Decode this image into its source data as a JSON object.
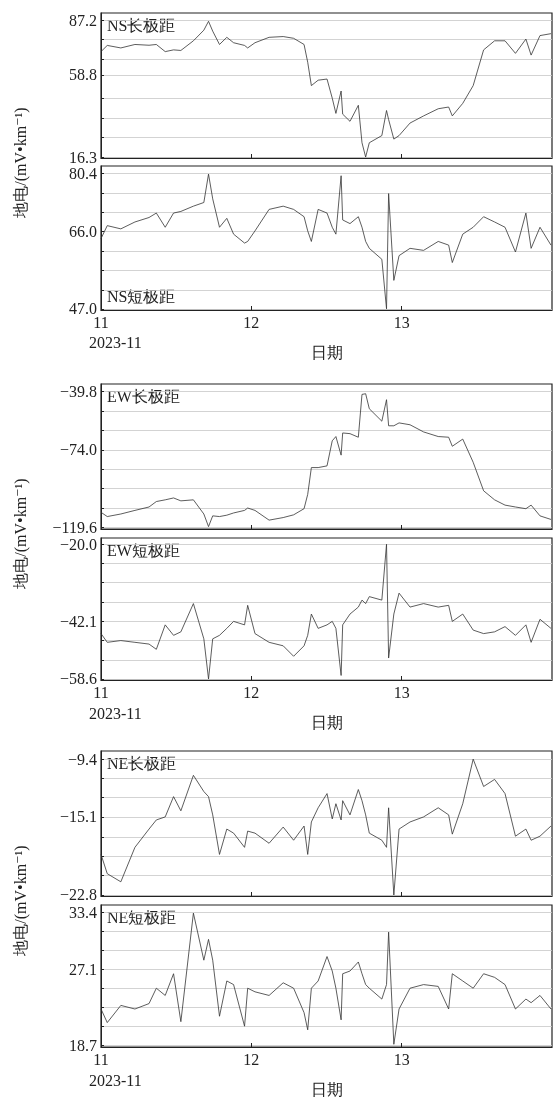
{
  "chart_data": [
    {
      "type": "line",
      "title": "NS长极距",
      "ylabel": "地电/(mV•km⁻¹)",
      "color": "#333333",
      "grid": "y",
      "tick_labels": "y",
      "x": [
        "2023-11-11T00:00",
        "2023-11-11T01:00",
        "2023-11-11T03:10",
        "2023-11-11T05:25",
        "2023-11-11T07:40",
        "2023-11-11T08:50",
        "2023-11-11T10:15",
        "2023-11-11T11:35",
        "2023-11-11T12:45",
        "2023-11-11T14:45",
        "2023-11-11T16:25",
        "2023-11-11T17:10",
        "2023-11-11T17:50",
        "2023-11-11T18:55",
        "2023-11-11T20:05",
        "2023-11-11T21:10",
        "2023-11-11T22:55",
        "2023-11-11T23:25",
        "2023-11-12T00:35",
        "2023-11-12T02:50",
        "2023-11-12T05:05",
        "2023-11-12T06:45",
        "2023-11-12T08:25",
        "2023-11-12T09:00",
        "2023-11-12T09:35",
        "2023-11-12T10:40",
        "2023-11-12T12:05",
        "2023-11-12T12:55",
        "2023-11-12T13:30",
        "2023-11-12T14:20",
        "2023-11-12T14:35",
        "2023-11-12T15:45",
        "2023-11-12T17:05",
        "2023-11-12T17:40",
        "2023-11-12T18:15",
        "2023-11-12T18:50",
        "2023-11-12T20:50",
        "2023-11-12T21:35",
        "2023-11-12T21:55",
        "2023-11-12T22:45",
        "2023-11-12T23:35",
        "2023-11-13T01:20",
        "2023-11-13T03:30",
        "2023-11-13T05:50",
        "2023-11-13T07:30",
        "2023-11-13T08:05",
        "2023-11-13T09:45",
        "2023-11-13T11:25",
        "2023-11-13T13:05",
        "2023-11-13T14:50",
        "2023-11-13T16:30",
        "2023-11-13T18:10",
        "2023-11-13T19:50",
        "2023-11-13T20:40",
        "2023-11-13T22:05",
        "2023-11-13T23:50"
      ],
      "values": [
        70.9,
        74.1,
        72.8,
        74.6,
        74.2,
        74.6,
        70.9,
        71.8,
        71.5,
        76.5,
        82.0,
        86.6,
        81.5,
        74.6,
        78.3,
        75.5,
        74.1,
        72.8,
        75.5,
        78.3,
        78.7,
        77.8,
        74.6,
        65.4,
        53.3,
        56.1,
        56.7,
        46.8,
        38.9,
        50.5,
        38.5,
        34.8,
        43.1,
        23.7,
        16.3,
        23.7,
        27.4,
        40.4,
        35.7,
        25.6,
        27.4,
        33.9,
        37.6,
        41.3,
        42.2,
        37.6,
        44.1,
        53.3,
        71.8,
        76.5,
        76.5,
        70.0,
        77.4,
        69.1,
        79.2,
        80.2
      ],
      "xlim": [
        "2023-11-11T00:00",
        "2023-11-14T00:00"
      ],
      "xticks": [
        {
          "value": "2023-11-11T00:00",
          "label": null
        },
        {
          "value": "2023-11-12T00:00",
          "label": null
        },
        {
          "value": "2023-11-13T00:00",
          "label": null
        }
      ],
      "ylim": [
        15.8,
        90.9
      ],
      "yticks": [
        87.2,
        {
          "value": 77.1,
          "label": null
        },
        {
          "value": 66.9,
          "label": null
        },
        58.8,
        {
          "value": 46.7,
          "label": null
        },
        {
          "value": 36.6,
          "label": null
        },
        {
          "value": 26.4,
          "label": null
        },
        16.3
      ]
    },
    {
      "type": "line",
      "title": "NS短极距",
      "xlabel": "日期",
      "annotations": [
        "2023-11"
      ],
      "color": "#333333",
      "grid": "y",
      "x": [
        "2023-11-11T00:00",
        "2023-11-11T01:00",
        "2023-11-11T03:10",
        "2023-11-11T05:25",
        "2023-11-11T07:40",
        "2023-11-11T08:50",
        "2023-11-11T10:15",
        "2023-11-11T11:35",
        "2023-11-11T12:45",
        "2023-11-11T14:45",
        "2023-11-11T16:25",
        "2023-11-11T17:10",
        "2023-11-11T17:50",
        "2023-11-11T18:55",
        "2023-11-11T20:05",
        "2023-11-11T21:10",
        "2023-11-11T22:55",
        "2023-11-11T23:25",
        "2023-11-12T00:35",
        "2023-11-12T02:50",
        "2023-11-12T05:05",
        "2023-11-12T06:45",
        "2023-11-12T08:25",
        "2023-11-12T09:00",
        "2023-11-12T09:35",
        "2023-11-12T10:40",
        "2023-11-12T12:05",
        "2023-11-12T12:55",
        "2023-11-12T13:30",
        "2023-11-12T14:20",
        "2023-11-12T14:35",
        "2023-11-12T15:45",
        "2023-11-12T17:05",
        "2023-11-12T17:40",
        "2023-11-12T18:15",
        "2023-11-12T18:50",
        "2023-11-12T20:50",
        "2023-11-12T21:35",
        "2023-11-12T21:55",
        "2023-11-12T22:45",
        "2023-11-12T23:35",
        "2023-11-13T01:20",
        "2023-11-13T03:30",
        "2023-11-13T05:50",
        "2023-11-13T07:30",
        "2023-11-13T08:05",
        "2023-11-13T09:45",
        "2023-11-13T11:25",
        "2023-11-13T13:05",
        "2023-11-13T14:50",
        "2023-11-13T16:30",
        "2023-11-13T18:10",
        "2023-11-13T19:50",
        "2023-11-13T20:40",
        "2023-11-13T22:05",
        "2023-11-13T23:50"
      ],
      "values": [
        64.3,
        67.5,
        66.7,
        68.4,
        69.5,
        70.6,
        67.1,
        70.6,
        71.0,
        72.3,
        73.2,
        80.2,
        74.1,
        67.1,
        69.3,
        65.4,
        63.2,
        63.6,
        66.2,
        71.5,
        72.3,
        71.5,
        69.7,
        66.2,
        63.6,
        71.5,
        70.6,
        67.1,
        65.4,
        79.8,
        68.9,
        68.0,
        69.7,
        67.1,
        63.6,
        61.9,
        59.2,
        47.0,
        75.4,
        54.0,
        60.1,
        61.9,
        61.4,
        63.6,
        62.7,
        58.4,
        65.4,
        67.1,
        69.7,
        68.4,
        67.1,
        61.0,
        70.6,
        61.9,
        67.1,
        62.7
      ],
      "xlim": [
        "2023-11-11T00:00",
        "2023-11-14T00:00"
      ],
      "xticks": [
        {
          "value": "2023-11-11T00:00",
          "label": "11"
        },
        {
          "value": "2023-11-12T00:00",
          "label": "12"
        },
        {
          "value": "2023-11-13T00:00",
          "label": "13"
        }
      ],
      "ylim": [
        46.7,
        82.2
      ],
      "yticks": [
        {
          "value": 80.4,
          "label": "80.4"
        },
        {
          "value": 75.6,
          "label": null
        },
        {
          "value": 70.8,
          "label": null
        },
        {
          "value": 66,
          "label": "66.0"
        },
        {
          "value": 61.2,
          "label": null
        },
        {
          "value": 56.4,
          "label": null
        },
        {
          "value": 51.6,
          "label": null
        },
        {
          "value": 47,
          "label": "47.0"
        }
      ]
    },
    {
      "type": "line",
      "title": "EW长极距",
      "ylabel": "地电/(mV•km⁻¹)",
      "color": "#333333",
      "grid": "y",
      "tick_labels": "y",
      "x": [
        "2023-11-11T00:00",
        "2023-11-11T01:00",
        "2023-11-11T03:10",
        "2023-11-11T05:25",
        "2023-11-11T07:40",
        "2023-11-11T08:50",
        "2023-11-11T10:15",
        "2023-11-11T11:35",
        "2023-11-11T12:45",
        "2023-11-11T14:45",
        "2023-11-11T16:25",
        "2023-11-11T17:10",
        "2023-11-11T17:50",
        "2023-11-11T18:55",
        "2023-11-11T20:05",
        "2023-11-11T21:10",
        "2023-11-11T22:55",
        "2023-11-11T23:25",
        "2023-11-12T00:35",
        "2023-11-12T02:50",
        "2023-11-12T05:05",
        "2023-11-12T06:45",
        "2023-11-12T08:25",
        "2023-11-12T09:00",
        "2023-11-12T09:35",
        "2023-11-12T10:40",
        "2023-11-12T12:05",
        "2023-11-12T12:55",
        "2023-11-12T13:30",
        "2023-11-12T14:20",
        "2023-11-12T14:35",
        "2023-11-12T15:45",
        "2023-11-12T17:05",
        "2023-11-12T17:40",
        "2023-11-12T18:15",
        "2023-11-12T18:50",
        "2023-11-12T20:50",
        "2023-11-12T21:35",
        "2023-11-12T21:55",
        "2023-11-12T22:45",
        "2023-11-12T23:35",
        "2023-11-13T01:20",
        "2023-11-13T03:30",
        "2023-11-13T05:50",
        "2023-11-13T07:30",
        "2023-11-13T08:05",
        "2023-11-13T09:45",
        "2023-11-13T11:25",
        "2023-11-13T13:05",
        "2023-11-13T14:50",
        "2023-11-13T16:30",
        "2023-11-13T18:10",
        "2023-11-13T19:50",
        "2023-11-13T20:40",
        "2023-11-13T22:05",
        "2023-11-13T23:50"
      ],
      "values": [
        -110.6,
        -113.1,
        -111.6,
        -109.5,
        -107.5,
        -104.3,
        -103.3,
        -102.2,
        -103.9,
        -103.3,
        -111.6,
        -119.0,
        -112.7,
        -113.1,
        -112.3,
        -111.0,
        -109.5,
        -108.1,
        -109.5,
        -115.2,
        -113.7,
        -112.1,
        -108.5,
        -100.1,
        -84.4,
        -84.4,
        -83.4,
        -68.7,
        -66.2,
        -77.1,
        -64.1,
        -64.5,
        -66.6,
        -41.5,
        -41.1,
        -49.9,
        -57.2,
        -44.6,
        -59.9,
        -59.9,
        -58.2,
        -59.3,
        -63.5,
        -66.2,
        -66.6,
        -71.9,
        -67.7,
        -81.3,
        -98.0,
        -103.3,
        -106.4,
        -107.5,
        -108.5,
        -106.4,
        -112.7,
        -114.8
      ],
      "xlim": [
        "2023-11-11T00:00",
        "2023-11-14T00:00"
      ],
      "xticks": [
        {
          "value": "2023-11-11T00:00",
          "label": null
        },
        {
          "value": "2023-11-12T00:00",
          "label": null
        },
        {
          "value": "2023-11-13T00:00",
          "label": null
        }
      ],
      "ylim": [
        -120.4,
        -35.4
      ],
      "yticks": [
        {
          "value": -39.8,
          "label": "−39.8"
        },
        {
          "value": -51.2,
          "label": null
        },
        {
          "value": -62.6,
          "label": null
        },
        {
          "value": -74,
          "label": "−74.0"
        },
        {
          "value": -85.4,
          "label": null
        },
        {
          "value": -96.8,
          "label": null
        },
        {
          "value": -108.2,
          "label": null
        },
        {
          "value": -119.6,
          "label": "−119.6"
        }
      ]
    },
    {
      "type": "line",
      "title": "EW短极距",
      "xlabel": "日期",
      "annotations": [
        "2023-11"
      ],
      "color": "#333333",
      "grid": "y",
      "x": [
        "2023-11-11T00:00",
        "2023-11-11T01:00",
        "2023-11-11T03:10",
        "2023-11-11T05:25",
        "2023-11-11T07:40",
        "2023-11-11T08:50",
        "2023-11-11T10:15",
        "2023-11-11T11:35",
        "2023-11-11T12:45",
        "2023-11-11T14:45",
        "2023-11-11T16:25",
        "2023-11-11T17:10",
        "2023-11-11T17:50",
        "2023-11-11T18:55",
        "2023-11-11T20:05",
        "2023-11-11T21:10",
        "2023-11-11T22:55",
        "2023-11-11T23:25",
        "2023-11-12T00:35",
        "2023-11-12T02:50",
        "2023-11-12T05:05",
        "2023-11-12T06:45",
        "2023-11-12T08:25",
        "2023-11-12T09:00",
        "2023-11-12T09:35",
        "2023-11-12T10:40",
        "2023-11-12T12:05",
        "2023-11-12T12:55",
        "2023-11-12T13:30",
        "2023-11-12T14:20",
        "2023-11-12T14:35",
        "2023-11-12T15:45",
        "2023-11-12T17:05",
        "2023-11-12T17:40",
        "2023-11-12T18:15",
        "2023-11-12T18:50",
        "2023-11-12T20:50",
        "2023-11-12T21:35",
        "2023-11-12T21:55",
        "2023-11-12T22:45",
        "2023-11-12T23:35",
        "2023-11-13T01:20",
        "2023-11-13T03:30",
        "2023-11-13T05:50",
        "2023-11-13T07:30",
        "2023-11-13T08:05",
        "2023-11-13T09:45",
        "2023-11-13T11:25",
        "2023-11-13T13:05",
        "2023-11-13T14:50",
        "2023-11-13T16:30",
        "2023-11-13T18:10",
        "2023-11-13T19:50",
        "2023-11-13T20:40",
        "2023-11-13T22:05",
        "2023-11-13T23:50"
      ],
      "values": [
        -45.6,
        -48.1,
        -47.6,
        -48.1,
        -48.6,
        -50.1,
        -43.1,
        -46.1,
        -45.1,
        -37.0,
        -47.1,
        -58.6,
        -47.1,
        -46.1,
        -44.1,
        -42.1,
        -43.1,
        -37.5,
        -45.6,
        -48.1,
        -49.1,
        -52.1,
        -49.1,
        -46.1,
        -40.0,
        -44.1,
        -43.1,
        -42.1,
        -44.1,
        -57.6,
        -43.1,
        -40.0,
        -38.0,
        -36.0,
        -37.0,
        -35.0,
        -36.0,
        -20.0,
        -52.6,
        -40.0,
        -34.0,
        -38.0,
        -37.0,
        -38.0,
        -37.5,
        -42.1,
        -40.0,
        -44.6,
        -45.6,
        -45.1,
        -43.6,
        -46.1,
        -43.1,
        -48.1,
        -41.5,
        -44.1
      ],
      "xlim": [
        "2023-11-11T00:00",
        "2023-11-14T00:00"
      ],
      "xticks": [
        {
          "value": "2023-11-11T00:00",
          "label": "11"
        },
        {
          "value": "2023-11-12T00:00",
          "label": "12"
        },
        {
          "value": "2023-11-13T00:00",
          "label": "13"
        }
      ],
      "ylim": [
        -58.9,
        -18.2
      ],
      "yticks": [
        {
          "value": -20,
          "label": "−20.0"
        },
        {
          "value": -25.5,
          "label": null
        },
        {
          "value": -31,
          "label": null
        },
        {
          "value": -36.5,
          "label": null
        },
        {
          "value": -42.1,
          "label": "−42.1"
        },
        {
          "value": -47.6,
          "label": null
        },
        {
          "value": -53.1,
          "label": null
        },
        {
          "value": -58.6,
          "label": "−58.6"
        }
      ]
    },
    {
      "type": "line",
      "title": "NE长极距",
      "ylabel": "地电/(mV•km⁻¹)",
      "color": "#333333",
      "grid": "y",
      "tick_labels": "y",
      "x": [
        "2023-11-11T00:00",
        "2023-11-11T01:00",
        "2023-11-11T03:10",
        "2023-11-11T05:25",
        "2023-11-11T07:40",
        "2023-11-11T08:50",
        "2023-11-11T10:15",
        "2023-11-11T11:35",
        "2023-11-11T12:45",
        "2023-11-11T14:45",
        "2023-11-11T16:25",
        "2023-11-11T17:10",
        "2023-11-11T17:50",
        "2023-11-11T18:55",
        "2023-11-11T20:05",
        "2023-11-11T21:10",
        "2023-11-11T22:55",
        "2023-11-11T23:25",
        "2023-11-12T00:35",
        "2023-11-12T02:50",
        "2023-11-12T05:05",
        "2023-11-12T06:45",
        "2023-11-12T08:25",
        "2023-11-12T09:00",
        "2023-11-12T09:35",
        "2023-11-12T10:40",
        "2023-11-12T12:05",
        "2023-11-12T12:55",
        "2023-11-12T13:30",
        "2023-11-12T14:20",
        "2023-11-12T14:35",
        "2023-11-12T15:45",
        "2023-11-12T17:05",
        "2023-11-12T17:40",
        "2023-11-12T18:15",
        "2023-11-12T18:50",
        "2023-11-12T20:50",
        "2023-11-12T21:35",
        "2023-11-12T21:55",
        "2023-11-12T22:45",
        "2023-11-12T23:35",
        "2023-11-13T01:20",
        "2023-11-13T03:30",
        "2023-11-13T05:50",
        "2023-11-13T07:30",
        "2023-11-13T08:05",
        "2023-11-13T09:45",
        "2023-11-13T11:25",
        "2023-11-13T13:05",
        "2023-11-13T14:50",
        "2023-11-13T16:30",
        "2023-11-13T18:10",
        "2023-11-13T19:50",
        "2023-11-13T20:40",
        "2023-11-13T22:05",
        "2023-11-13T23:50"
      ],
      "values": [
        -18.8,
        -20.7,
        -21.5,
        -18.1,
        -16.3,
        -15.4,
        -15.1,
        -13.1,
        -14.5,
        -11.0,
        -12.6,
        -13.1,
        -14.9,
        -18.8,
        -16.3,
        -16.7,
        -18.1,
        -16.5,
        -16.7,
        -17.7,
        -16.1,
        -17.4,
        -16.0,
        -18.8,
        -15.6,
        -14.2,
        -12.8,
        -15.3,
        -13.8,
        -15.4,
        -13.5,
        -14.9,
        -12.4,
        -13.5,
        -14.9,
        -16.7,
        -17.4,
        -18.1,
        -14.2,
        -22.8,
        -16.3,
        -15.6,
        -15.1,
        -14.2,
        -14.9,
        -16.8,
        -13.8,
        -9.4,
        -12.1,
        -11.4,
        -12.8,
        -17.0,
        -16.3,
        -17.4,
        -17.0,
        -16.0
      ],
      "xlim": [
        "2023-11-11T00:00",
        "2023-11-14T00:00"
      ],
      "xticks": [
        {
          "value": "2023-11-11T00:00",
          "label": null
        },
        {
          "value": "2023-11-12T00:00",
          "label": null
        },
        {
          "value": "2023-11-13T00:00",
          "label": null
        }
      ],
      "ylim": [
        -22.9,
        -8.6
      ],
      "yticks": [
        {
          "value": -9.4,
          "label": "−9.4"
        },
        {
          "value": -11.3,
          "label": null
        },
        {
          "value": -13.2,
          "label": null
        },
        {
          "value": -15.1,
          "label": "−15.1"
        },
        {
          "value": -17.1,
          "label": null
        },
        {
          "value": -19,
          "label": null
        },
        {
          "value": -20.9,
          "label": null
        },
        {
          "value": -22.8,
          "label": "−22.8"
        }
      ]
    },
    {
      "type": "line",
      "title": "NE短极距",
      "xlabel": "日期",
      "annotations": [
        "2023-11"
      ],
      "color": "#333333",
      "grid": "y",
      "x": [
        "2023-11-11T00:00",
        "2023-11-11T01:00",
        "2023-11-11T03:10",
        "2023-11-11T05:25",
        "2023-11-11T07:40",
        "2023-11-11T08:50",
        "2023-11-11T10:15",
        "2023-11-11T11:35",
        "2023-11-11T12:45",
        "2023-11-11T14:45",
        "2023-11-11T16:25",
        "2023-11-11T17:10",
        "2023-11-11T17:50",
        "2023-11-11T18:55",
        "2023-11-11T20:05",
        "2023-11-11T21:10",
        "2023-11-11T22:55",
        "2023-11-11T23:25",
        "2023-11-12T00:35",
        "2023-11-12T02:50",
        "2023-11-12T05:05",
        "2023-11-12T06:45",
        "2023-11-12T08:25",
        "2023-11-12T09:00",
        "2023-11-12T09:35",
        "2023-11-12T10:40",
        "2023-11-12T12:05",
        "2023-11-12T12:55",
        "2023-11-12T13:30",
        "2023-11-12T14:20",
        "2023-11-12T14:35",
        "2023-11-12T15:45",
        "2023-11-12T17:05",
        "2023-11-12T17:40",
        "2023-11-12T18:15",
        "2023-11-12T18:50",
        "2023-11-12T20:50",
        "2023-11-12T21:35",
        "2023-11-12T21:55",
        "2023-11-12T22:45",
        "2023-11-12T23:35",
        "2023-11-13T01:20",
        "2023-11-13T03:30",
        "2023-11-13T05:50",
        "2023-11-13T07:30",
        "2023-11-13T08:05",
        "2023-11-13T09:45",
        "2023-11-13T11:25",
        "2023-11-13T13:05",
        "2023-11-13T14:50",
        "2023-11-13T16:30",
        "2023-11-13T18:10",
        "2023-11-13T19:50",
        "2023-11-13T20:40",
        "2023-11-13T22:05",
        "2023-11-13T23:50"
      ],
      "values": [
        22.7,
        21.2,
        23.1,
        22.7,
        23.3,
        25.0,
        24.2,
        26.6,
        21.3,
        33.3,
        28.1,
        30.4,
        28.1,
        21.9,
        25.8,
        25.4,
        20.8,
        25.0,
        24.6,
        24.2,
        25.6,
        25.0,
        22.3,
        20.4,
        25.0,
        25.8,
        28.5,
        26.9,
        25.0,
        21.5,
        26.6,
        26.9,
        27.9,
        26.6,
        25.4,
        25.0,
        23.8,
        25.4,
        31.2,
        18.8,
        22.7,
        25.0,
        25.4,
        25.2,
        22.7,
        26.6,
        25.8,
        25.0,
        26.6,
        26.2,
        25.4,
        22.7,
        23.8,
        23.4,
        24.2,
        22.7
      ],
      "xlim": [
        "2023-11-11T00:00",
        "2023-11-14T00:00"
      ],
      "xticks": [
        {
          "value": "2023-11-11T00:00",
          "label": "11"
        },
        {
          "value": "2023-11-12T00:00",
          "label": "12"
        },
        {
          "value": "2023-11-13T00:00",
          "label": "13"
        }
      ],
      "ylim": [
        18.5,
        34.2
      ],
      "yticks": [
        33.4,
        {
          "value": 31.3,
          "label": null
        },
        {
          "value": 29.2,
          "label": null
        },
        27.1,
        {
          "value": 25,
          "label": null
        },
        {
          "value": 22.9,
          "label": null
        },
        {
          "value": 20.8,
          "label": null
        },
        18.7
      ]
    }
  ]
}
